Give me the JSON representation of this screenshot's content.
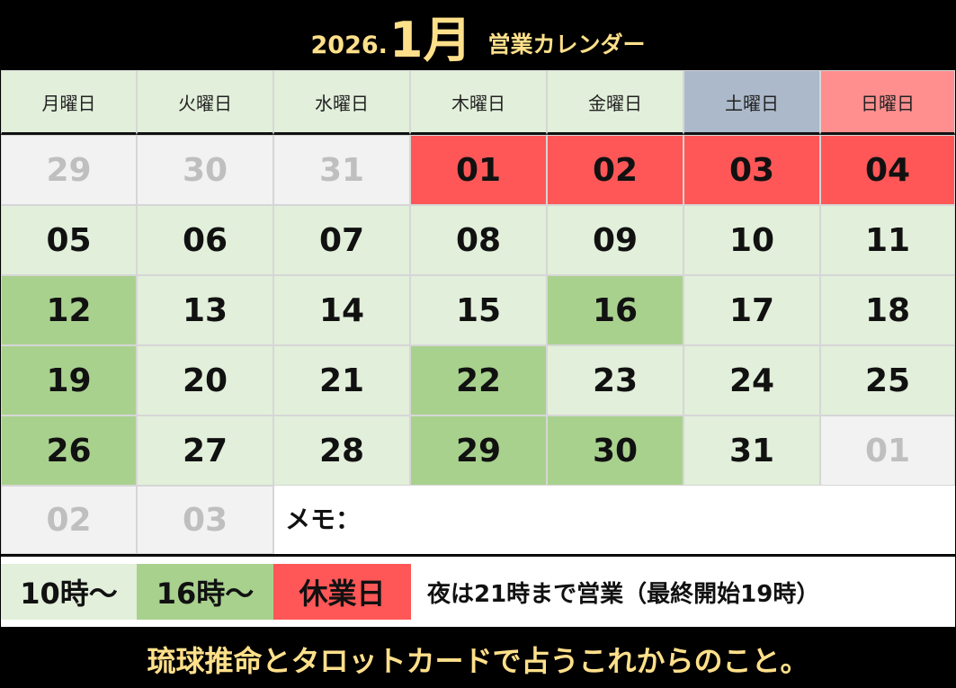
{
  "title": {
    "year": "2026.",
    "month": "1月",
    "suffix": "営業カレンダー"
  },
  "weekdays": [
    {
      "label": "月曜日",
      "type": "weekday"
    },
    {
      "label": "火曜日",
      "type": "weekday"
    },
    {
      "label": "水曜日",
      "type": "weekday"
    },
    {
      "label": "木曜日",
      "type": "weekday"
    },
    {
      "label": "金曜日",
      "type": "weekday"
    },
    {
      "label": "土曜日",
      "type": "sat"
    },
    {
      "label": "日曜日",
      "type": "sun"
    }
  ],
  "weeks": [
    [
      {
        "day": "29",
        "status": "other"
      },
      {
        "day": "30",
        "status": "other"
      },
      {
        "day": "31",
        "status": "other"
      },
      {
        "day": "01",
        "status": "closed"
      },
      {
        "day": "02",
        "status": "closed"
      },
      {
        "day": "03",
        "status": "closed"
      },
      {
        "day": "04",
        "status": "closed"
      }
    ],
    [
      {
        "day": "05",
        "status": "normal"
      },
      {
        "day": "06",
        "status": "normal"
      },
      {
        "day": "07",
        "status": "normal"
      },
      {
        "day": "08",
        "status": "normal"
      },
      {
        "day": "09",
        "status": "normal"
      },
      {
        "day": "10",
        "status": "normal"
      },
      {
        "day": "11",
        "status": "normal"
      }
    ],
    [
      {
        "day": "12",
        "status": "late"
      },
      {
        "day": "13",
        "status": "normal"
      },
      {
        "day": "14",
        "status": "normal"
      },
      {
        "day": "15",
        "status": "normal"
      },
      {
        "day": "16",
        "status": "late"
      },
      {
        "day": "17",
        "status": "normal"
      },
      {
        "day": "18",
        "status": "normal"
      }
    ],
    [
      {
        "day": "19",
        "status": "late"
      },
      {
        "day": "20",
        "status": "normal"
      },
      {
        "day": "21",
        "status": "normal"
      },
      {
        "day": "22",
        "status": "late"
      },
      {
        "day": "23",
        "status": "normal"
      },
      {
        "day": "24",
        "status": "normal"
      },
      {
        "day": "25",
        "status": "normal"
      }
    ],
    [
      {
        "day": "26",
        "status": "late"
      },
      {
        "day": "27",
        "status": "normal"
      },
      {
        "day": "28",
        "status": "normal"
      },
      {
        "day": "29",
        "status": "late"
      },
      {
        "day": "30",
        "status": "late"
      },
      {
        "day": "31",
        "status": "normal"
      },
      {
        "day": "01",
        "status": "other"
      }
    ],
    [
      {
        "day": "02",
        "status": "other"
      },
      {
        "day": "03",
        "status": "other"
      }
    ]
  ],
  "memo": {
    "label": "メモ："
  },
  "legend": {
    "normal": "10時～",
    "late": "16時～",
    "closed": "休業日",
    "note": "夜は21時まで営業（最終開始19時）"
  },
  "footer": "琉球推命とタロットカードで占うこれからのこと。",
  "colors": {
    "background": "#000000",
    "title_text": "#ffe08a",
    "normal": "#e2efda",
    "late": "#a9d18e",
    "closed": "#ff5757",
    "other": "#f2f2f2",
    "saturday_header": "#acb9ca",
    "sunday_header": "#ff8f8f"
  }
}
